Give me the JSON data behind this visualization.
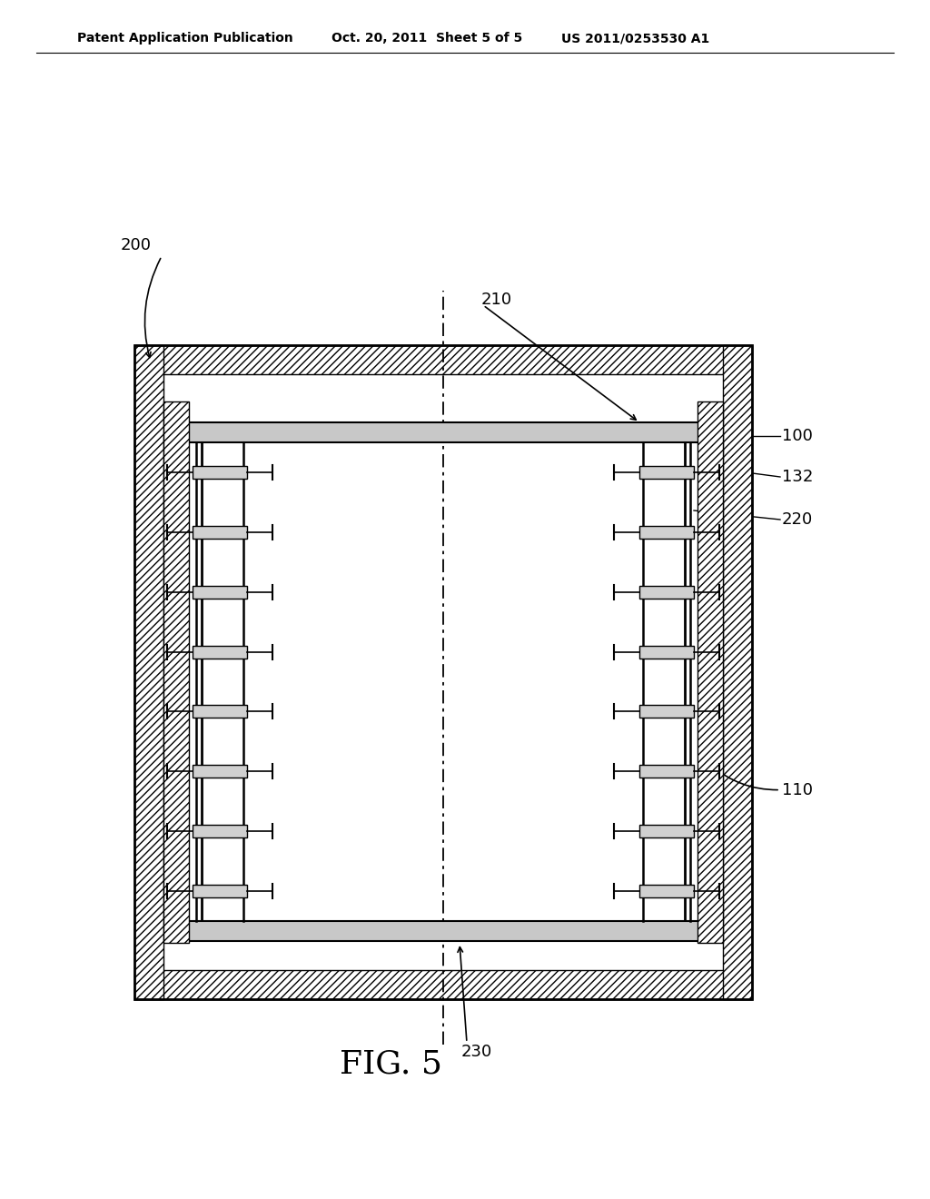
{
  "bg_color": "#ffffff",
  "header_left": "Patent Application Publication",
  "header_mid": "Oct. 20, 2011  Sheet 5 of 5",
  "header_right": "US 2011/0253530 A1",
  "fig_label": "FIG. 5",
  "label_200": "200",
  "label_210": "210",
  "label_100": "100",
  "label_132": "132",
  "label_220": "220",
  "label_110": "110",
  "label_230": "230",
  "line_color": "#000000",
  "num_slots": 8
}
